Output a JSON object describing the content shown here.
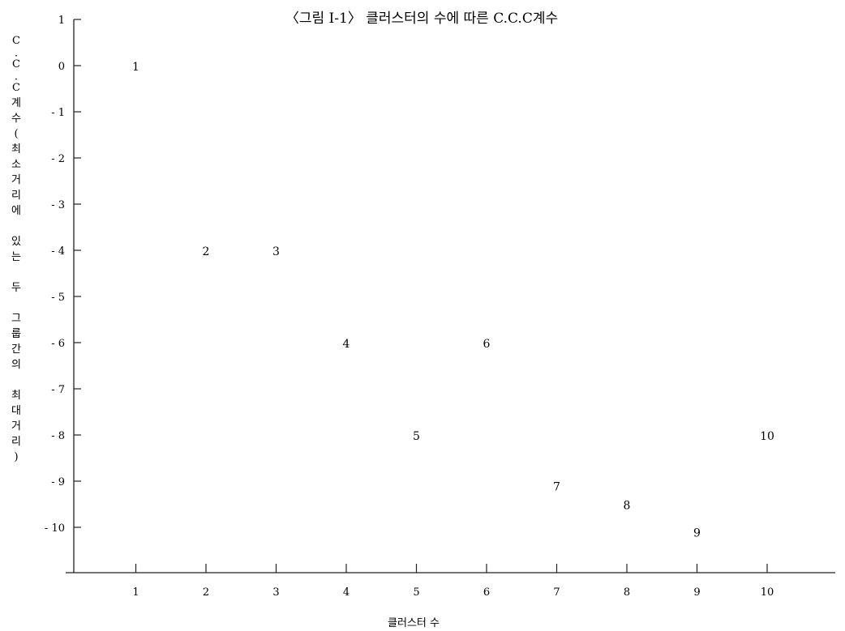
{
  "chart_data": {
    "type": "scatter",
    "title": "〈그림 Ⅰ-1〉 클러스터의 수에 따른 C.C.C계수",
    "xlabel": "클러스터 수",
    "ylabel": "C·C·C계수(최소거리에 있는 두 그룹간의 최대거리)",
    "ylabel_lines": [
      "C",
      "·",
      "C",
      "·",
      "C",
      "계",
      "수",
      "(",
      "최",
      "소",
      "거",
      "리",
      "에",
      "",
      "있",
      "는",
      "",
      "두",
      "",
      "그",
      "룹",
      "간",
      "의",
      "",
      "최",
      "대",
      "거",
      "리",
      ")"
    ],
    "x_ticks": [
      "1",
      "2",
      "3",
      "4",
      "5",
      "6",
      "7",
      "8",
      "9",
      "10"
    ],
    "y_ticks": [
      "1",
      "0",
      "- 1",
      "- 2",
      "- 3",
      "- 4",
      "- 5",
      "- 6",
      "- 7",
      "- 8",
      "- 9",
      "- 10"
    ],
    "xlim": [
      0,
      11
    ],
    "ylim": [
      -11,
      1
    ],
    "points": [
      {
        "label": "1",
        "x": 1,
        "y": 0
      },
      {
        "label": "2",
        "x": 2,
        "y": -4
      },
      {
        "label": "3",
        "x": 3,
        "y": -4
      },
      {
        "label": "4",
        "x": 4,
        "y": -6
      },
      {
        "label": "5",
        "x": 5,
        "y": -8
      },
      {
        "label": "6",
        "x": 6,
        "y": -6
      },
      {
        "label": "7",
        "x": 7,
        "y": -9.1
      },
      {
        "label": "8",
        "x": 8,
        "y": -9.5
      },
      {
        "label": "9",
        "x": 9,
        "y": -10.1
      },
      {
        "label": "10",
        "x": 10,
        "y": -8
      }
    ],
    "grid": false,
    "legend": "none"
  }
}
